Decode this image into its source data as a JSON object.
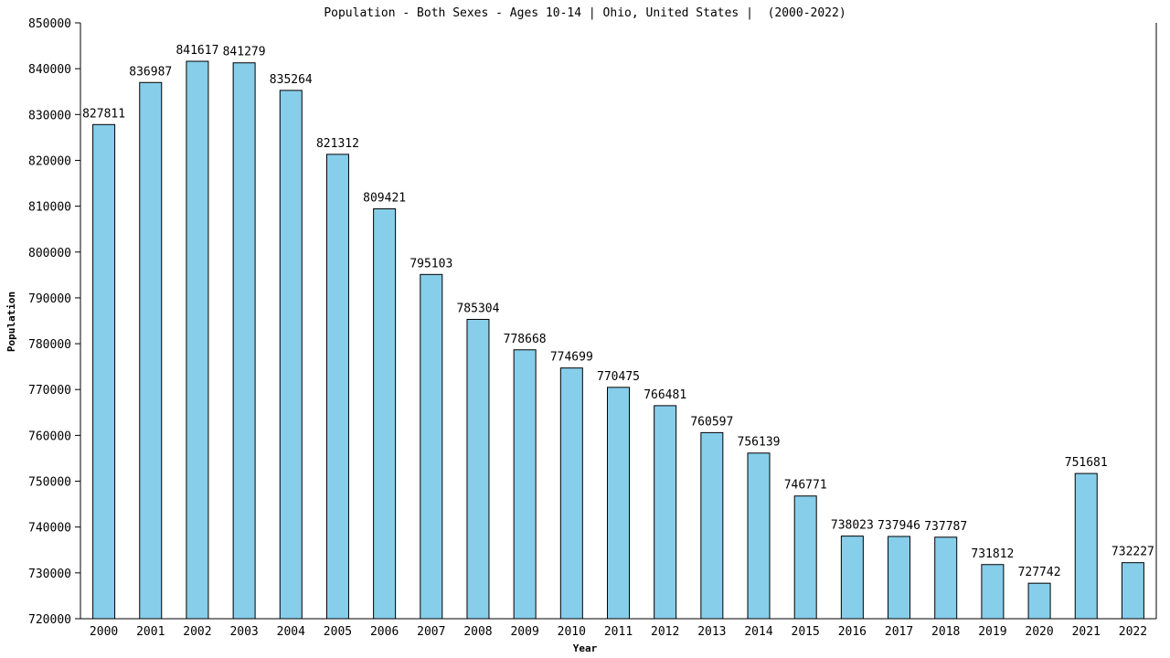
{
  "chart_data": {
    "type": "bar",
    "title": "Population - Both Sexes - Ages 10-14 | Ohio, United States |  (2000-2022)",
    "x_label": "Year",
    "y_label": "Population",
    "categories": [
      "2000",
      "2001",
      "2002",
      "2003",
      "2004",
      "2005",
      "2006",
      "2007",
      "2008",
      "2009",
      "2010",
      "2011",
      "2012",
      "2013",
      "2014",
      "2015",
      "2016",
      "2017",
      "2018",
      "2019",
      "2020",
      "2021",
      "2022"
    ],
    "values": [
      827811,
      836987,
      841617,
      841279,
      835264,
      821312,
      809421,
      795103,
      785304,
      778668,
      774699,
      770475,
      766481,
      760597,
      756139,
      746771,
      738023,
      737946,
      737787,
      731812,
      727742,
      751681,
      732227
    ],
    "color": "#87ceeb",
    "ylim": [
      720000,
      850000
    ],
    "yticks": [
      720000,
      730000,
      740000,
      750000,
      760000,
      770000,
      780000,
      790000,
      800000,
      810000,
      820000,
      830000,
      840000,
      850000
    ],
    "grid": false
  }
}
